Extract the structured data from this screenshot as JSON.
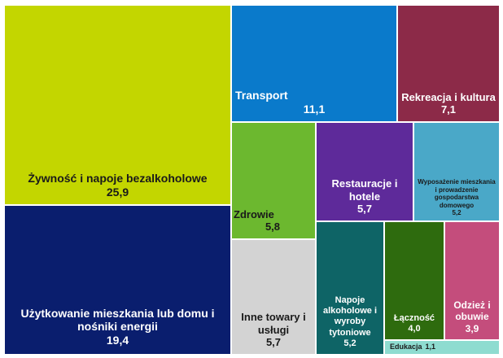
{
  "chart_data": {
    "type": "treemap",
    "items": [
      {
        "key": "food",
        "label": "Żywność i napoje bezalkoholowe",
        "value": 25.9,
        "display": "25,9",
        "color": "#c3d600"
      },
      {
        "key": "housing",
        "label": "Użytkowanie mieszkania lub domu i nośniki energii",
        "value": 19.4,
        "display": "19,4",
        "color": "#0a1e6e"
      },
      {
        "key": "transport",
        "label": "Transport",
        "value": 11.1,
        "display": "11,1",
        "color": "#0a7acb"
      },
      {
        "key": "recreation",
        "label": "Rekreacja i kultura",
        "value": 7.1,
        "display": "7,1",
        "color": "#8c2a48"
      },
      {
        "key": "health",
        "label": "Zdrowie",
        "value": 5.8,
        "display": "5,8",
        "color": "#6cb82f"
      },
      {
        "key": "other",
        "label": "Inne towary i usługi",
        "value": 5.7,
        "display": "5,7",
        "color": "#d3d3d3"
      },
      {
        "key": "restaurants",
        "label": "Restauracje i hotele",
        "value": 5.7,
        "display": "5,7",
        "color": "#5e2a9a"
      },
      {
        "key": "furnishing",
        "label": "Wyposażenie mieszkania i prowadzenie gospodarstwa domowego",
        "value": 5.2,
        "display": "5,2",
        "color": "#4aa8c8"
      },
      {
        "key": "alcohol",
        "label": "Napoje alkoholowe i wyroby tytoniowe",
        "value": 5.2,
        "display": "5,2",
        "color": "#0e6466"
      },
      {
        "key": "communication",
        "label": "Łączność",
        "value": 4.0,
        "display": "4,0",
        "color": "#2e6b0e"
      },
      {
        "key": "clothing",
        "label": "Odzież i obuwie",
        "value": 3.9,
        "display": "3,9",
        "color": "#c44d7c"
      },
      {
        "key": "education",
        "label": "Edukacja",
        "value": 1.1,
        "display": "1,1",
        "color": "#8edcd0"
      }
    ]
  }
}
